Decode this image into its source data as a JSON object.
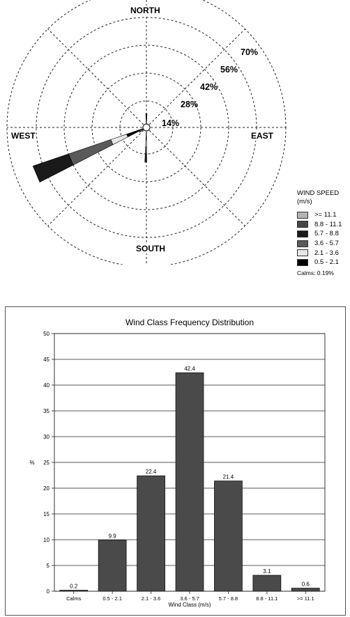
{
  "wind_rose": {
    "directions": {
      "north": "NORTH",
      "south": "SOUTH",
      "east": "EAST",
      "west": "WEST"
    },
    "ring_labels": [
      "14%",
      "28%",
      "42%",
      "56%",
      "70%"
    ],
    "legend": {
      "title_line1": "WIND SPEED",
      "title_line2": "(m/s)",
      "entries": [
        {
          "label": ">= 11.1",
          "color": "#b4b4b4"
        },
        {
          "label": "8.8 - 11.1",
          "color": "#474747"
        },
        {
          "label": "5.7 -  8.8",
          "color": "#1a1a1a"
        },
        {
          "label": "3.6 -  5.7",
          "color": "#5a5a5a"
        },
        {
          "label": "2.1 -  3.6",
          "color": "#e6e6e6"
        },
        {
          "label": "0.5 -  2.1",
          "color": "#000000"
        }
      ],
      "calms": "Calms: 0.19%"
    }
  },
  "chart_data": {
    "type": "bar",
    "title": "Wind Class Frequency Distribution",
    "xlabel": "Wind Class (m/s)",
    "ylabel": "%",
    "categories": [
      "Calms",
      "0.5 - 2.1",
      "2.1 - 3.6",
      "3.6 - 5.7",
      "5.7 - 8.8",
      "8.8 - 11.1",
      ">= 11.1"
    ],
    "values": [
      0.2,
      9.9,
      22.4,
      42.4,
      21.4,
      3.1,
      0.6
    ],
    "data_labels": [
      "0.2",
      "9.9",
      "22.4",
      "42.4",
      "21.4",
      "3.1",
      "0.6"
    ],
    "ylim": [
      0,
      50
    ],
    "yticks": [
      0,
      5,
      10,
      15,
      20,
      25,
      30,
      35,
      40,
      45,
      50
    ],
    "grid": true,
    "bar_color": "#4a4a4a"
  }
}
